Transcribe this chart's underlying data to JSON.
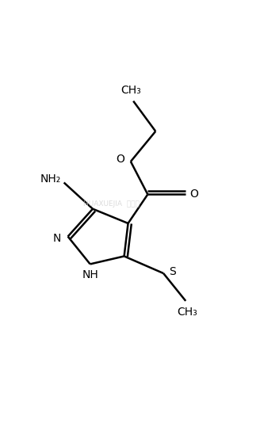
{
  "bg_color": "#ffffff",
  "line_color": "#000000",
  "line_width": 1.8,
  "figsize": [
    3.33,
    5.34
  ],
  "dpi": 100,
  "xlim": [
    0,
    10
  ],
  "ylim": [
    0,
    16
  ]
}
